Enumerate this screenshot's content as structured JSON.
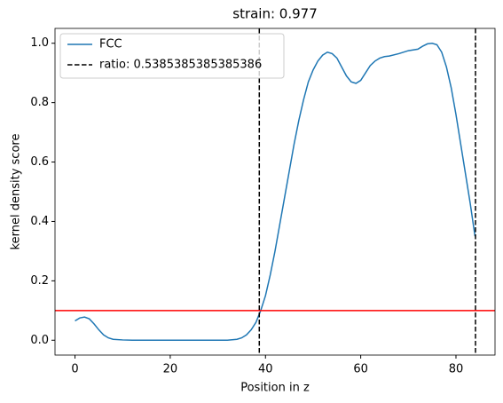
{
  "chart_data": {
    "type": "line",
    "title": "strain: 0.977",
    "xlabel": "Position in z",
    "ylabel": "kernel density score",
    "x": [
      0,
      1,
      2,
      3,
      4,
      5,
      6,
      7,
      8,
      10,
      12,
      14,
      16,
      18,
      20,
      22,
      24,
      26,
      28,
      30,
      32,
      34,
      35,
      36,
      37,
      38,
      39,
      40,
      41,
      42,
      43,
      44,
      45,
      46,
      47,
      48,
      49,
      50,
      51,
      52,
      53,
      54,
      55,
      56,
      57,
      58,
      59,
      60,
      61,
      62,
      63,
      64,
      65,
      66,
      68,
      70,
      72,
      73,
      74,
      75,
      76,
      77,
      78,
      79,
      80,
      81,
      82,
      83,
      84
    ],
    "series": [
      {
        "name": "FCC",
        "color": "#1f77b4",
        "values": [
          0.065,
          0.075,
          0.078,
          0.072,
          0.055,
          0.035,
          0.018,
          0.008,
          0.003,
          0.001,
          0,
          0,
          0,
          0,
          0,
          0,
          0,
          0,
          0,
          0,
          0,
          0.003,
          0.008,
          0.018,
          0.035,
          0.06,
          0.1,
          0.15,
          0.22,
          0.3,
          0.39,
          0.48,
          0.57,
          0.66,
          0.74,
          0.81,
          0.87,
          0.91,
          0.94,
          0.96,
          0.97,
          0.965,
          0.95,
          0.92,
          0.89,
          0.87,
          0.865,
          0.875,
          0.9,
          0.925,
          0.94,
          0.95,
          0.955,
          0.957,
          0.965,
          0.975,
          0.98,
          0.99,
          0.998,
          1.0,
          0.995,
          0.97,
          0.92,
          0.85,
          0.76,
          0.66,
          0.56,
          0.46,
          0.35
        ]
      },
      {
        "name": "ratio: 0.5385385385385386",
        "color": "#000000",
        "dashed": true,
        "vlines": [
          38.7,
          84.1
        ]
      }
    ],
    "hline": {
      "value": 0.1,
      "color": "#ff0000"
    },
    "xlim": [
      -4.2,
      88.2
    ],
    "ylim": [
      -0.05,
      1.05
    ],
    "xticks": [
      0,
      20,
      40,
      60,
      80
    ],
    "yticks": [
      {
        "value": 0,
        "label": "0.0"
      },
      0.2,
      0.4,
      0.6,
      0.8,
      {
        "value": 1,
        "label": "1.0"
      }
    ],
    "legend": "upper left"
  }
}
